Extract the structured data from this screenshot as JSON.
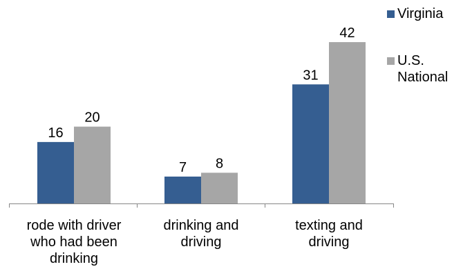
{
  "chart_data": {
    "type": "bar",
    "title": "",
    "xlabel": "",
    "ylabel": "",
    "categories": [
      "rode with driver\nwho had been\ndrinking",
      "drinking and\ndriving",
      "texting and\ndriving"
    ],
    "series": [
      {
        "name": "Virginia",
        "values": [
          16,
          7,
          31
        ],
        "color": "#355E91"
      },
      {
        "name": "U.S.\nNational",
        "values": [
          20,
          8,
          42
        ],
        "color": "#A6A6A6"
      }
    ],
    "ylim": [
      0,
      50
    ],
    "grid": false,
    "legend_position": "top-right",
    "data_labels": true
  }
}
